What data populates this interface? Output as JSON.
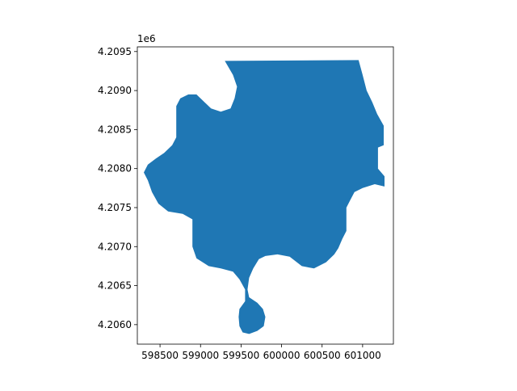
{
  "chart_data": {
    "type": "map",
    "title": "",
    "xlabel": "",
    "ylabel": "",
    "xlim": [
      598220,
      601380
    ],
    "ylim": [
      4205750,
      4209560
    ],
    "y_offset_label": "1e6",
    "x_ticks": [
      {
        "value": 598500,
        "label": "598500"
      },
      {
        "value": 599000,
        "label": "599000"
      },
      {
        "value": 599500,
        "label": "599500"
      },
      {
        "value": 600000,
        "label": "600000"
      },
      {
        "value": 600500,
        "label": "600500"
      },
      {
        "value": 601000,
        "label": "601000"
      }
    ],
    "y_ticks": [
      {
        "value": 4206000,
        "label": "4.2060"
      },
      {
        "value": 4206500,
        "label": "4.2065"
      },
      {
        "value": 4207000,
        "label": "4.2070"
      },
      {
        "value": 4207500,
        "label": "4.2075"
      },
      {
        "value": 4208000,
        "label": "4.2080"
      },
      {
        "value": 4208500,
        "label": "4.2085"
      },
      {
        "value": 4209000,
        "label": "4.2090"
      },
      {
        "value": 4209500,
        "label": "4.2095"
      }
    ],
    "grid": false,
    "fill_color": "#1f77b4",
    "polygon": [
      [
        599300,
        4209380
      ],
      [
        600950,
        4209390
      ],
      [
        601000,
        4209200
      ],
      [
        601050,
        4209000
      ],
      [
        601120,
        4208850
      ],
      [
        601180,
        4208700
      ],
      [
        601260,
        4208550
      ],
      [
        601260,
        4208300
      ],
      [
        601190,
        4208270
      ],
      [
        601190,
        4208000
      ],
      [
        601270,
        4207900
      ],
      [
        601270,
        4207770
      ],
      [
        601150,
        4207800
      ],
      [
        601000,
        4207750
      ],
      [
        600900,
        4207700
      ],
      [
        600850,
        4207600
      ],
      [
        600800,
        4207500
      ],
      [
        600800,
        4207200
      ],
      [
        600750,
        4207100
      ],
      [
        600700,
        4206980
      ],
      [
        600650,
        4206900
      ],
      [
        600550,
        4206800
      ],
      [
        600400,
        4206720
      ],
      [
        600250,
        4206750
      ],
      [
        600100,
        4206870
      ],
      [
        599950,
        4206900
      ],
      [
        599800,
        4206880
      ],
      [
        599720,
        4206840
      ],
      [
        599650,
        4206720
      ],
      [
        599600,
        4206600
      ],
      [
        599580,
        4206450
      ],
      [
        599600,
        4206350
      ],
      [
        599700,
        4206280
      ],
      [
        599770,
        4206200
      ],
      [
        599800,
        4206100
      ],
      [
        599780,
        4205980
      ],
      [
        599700,
        4205920
      ],
      [
        599600,
        4205880
      ],
      [
        599520,
        4205900
      ],
      [
        599480,
        4205980
      ],
      [
        599470,
        4206100
      ],
      [
        599480,
        4206200
      ],
      [
        599550,
        4206300
      ],
      [
        599550,
        4206450
      ],
      [
        599480,
        4206580
      ],
      [
        599400,
        4206680
      ],
      [
        599250,
        4206720
      ],
      [
        599100,
        4206750
      ],
      [
        598950,
        4206850
      ],
      [
        598900,
        4207000
      ],
      [
        598900,
        4207350
      ],
      [
        598780,
        4207420
      ],
      [
        598600,
        4207450
      ],
      [
        598480,
        4207550
      ],
      [
        598400,
        4207700
      ],
      [
        598350,
        4207850
      ],
      [
        598300,
        4207950
      ],
      [
        598350,
        4208050
      ],
      [
        598450,
        4208130
      ],
      [
        598550,
        4208200
      ],
      [
        598650,
        4208300
      ],
      [
        598700,
        4208400
      ],
      [
        598700,
        4208800
      ],
      [
        598750,
        4208900
      ],
      [
        598850,
        4208950
      ],
      [
        598950,
        4208950
      ],
      [
        599050,
        4208850
      ],
      [
        599130,
        4208770
      ],
      [
        599250,
        4208730
      ],
      [
        599370,
        4208770
      ],
      [
        599420,
        4208900
      ],
      [
        599450,
        4209050
      ],
      [
        599400,
        4209200
      ]
    ]
  }
}
